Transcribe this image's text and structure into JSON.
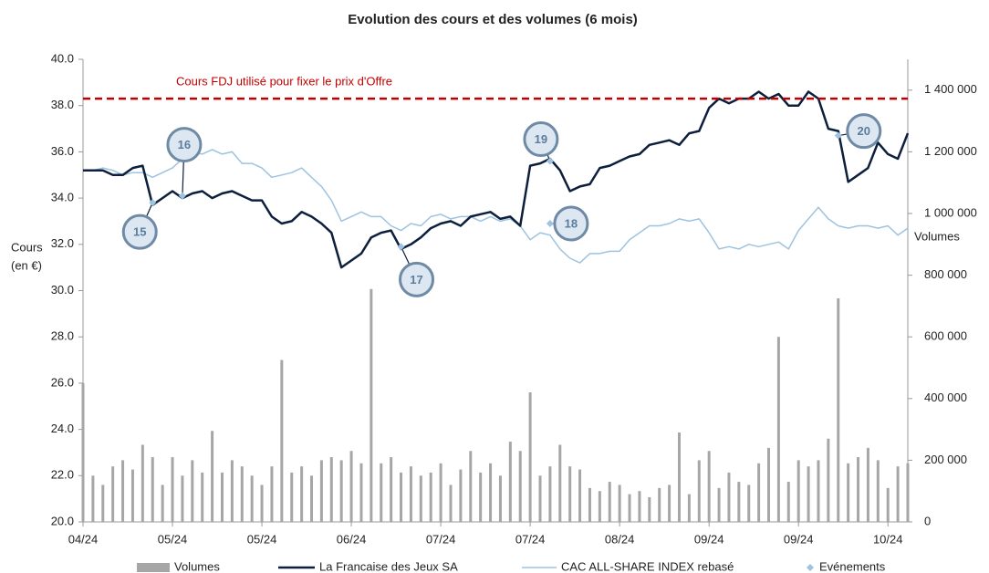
{
  "chart_data": {
    "type": "combo",
    "title": "Evolution des cours et des volumes (6 mois)",
    "ylabel": [
      "Cours",
      "(en €)"
    ],
    "y2label": "Volumes",
    "categories": [
      "04/24",
      null,
      null,
      null,
      null,
      null,
      null,
      null,
      null,
      "05/24",
      null,
      null,
      null,
      null,
      null,
      null,
      null,
      null,
      "05/24",
      null,
      null,
      null,
      null,
      null,
      null,
      null,
      null,
      "06/24",
      null,
      null,
      null,
      null,
      null,
      null,
      null,
      null,
      "07/24",
      null,
      null,
      null,
      null,
      null,
      null,
      null,
      null,
      "07/24",
      null,
      null,
      null,
      null,
      null,
      null,
      null,
      null,
      "08/24",
      null,
      null,
      null,
      null,
      null,
      null,
      null,
      null,
      "09/24",
      null,
      null,
      null,
      null,
      null,
      null,
      null,
      null,
      "09/24",
      null,
      null,
      null,
      null,
      null,
      null,
      null,
      null,
      "10/24",
      null,
      null
    ],
    "ylim": [
      20,
      40
    ],
    "yticks": [
      {
        "value": 20,
        "label": "20.0"
      },
      {
        "value": 22,
        "label": "22.0"
      },
      {
        "value": 24,
        "label": "24.0"
      },
      {
        "value": 26,
        "label": "26.0"
      },
      {
        "value": 28,
        "label": "28.0"
      },
      {
        "value": 30,
        "label": "30.0"
      },
      {
        "value": 32,
        "label": "32.0"
      },
      {
        "value": 34,
        "label": "34.0"
      },
      {
        "value": 36,
        "label": "36.0"
      },
      {
        "value": 38,
        "label": "38.0"
      },
      {
        "value": 40,
        "label": "40.0"
      }
    ],
    "y2lim": [
      0,
      1500000
    ],
    "y2ticks": [
      0,
      {
        "value": 200000,
        "label": "200 000"
      },
      {
        "value": 400000,
        "label": "400 000"
      },
      {
        "value": 600000,
        "label": "600 000"
      },
      {
        "value": 800000,
        "label": "800 000"
      },
      {
        "value": 1000000,
        "label": "1 000 000"
      },
      {
        "value": 1200000,
        "label": "1 200 000"
      },
      {
        "value": 1400000,
        "label": "1 400 000"
      }
    ],
    "grid": false,
    "legend": "bottom",
    "series": [
      {
        "name": "Volumes",
        "type": "bar",
        "axis": "y2",
        "color": "#a6a6a6",
        "values": [
          450000,
          150000,
          120000,
          180000,
          200000,
          170000,
          250000,
          210000,
          120000,
          210000,
          150000,
          200000,
          160000,
          295000,
          160000,
          200000,
          180000,
          150000,
          120000,
          180000,
          525000,
          160000,
          180000,
          150000,
          200000,
          210000,
          200000,
          230000,
          190000,
          755000,
          190000,
          210000,
          160000,
          180000,
          150000,
          160000,
          190000,
          120000,
          170000,
          230000,
          160000,
          190000,
          150000,
          260000,
          230000,
          420000,
          150000,
          180000,
          250000,
          180000,
          170000,
          110000,
          100000,
          130000,
          120000,
          90000,
          100000,
          80000,
          110000,
          120000,
          290000,
          90000,
          200000,
          230000,
          110000,
          160000,
          130000,
          120000,
          190000,
          240000,
          600000,
          130000,
          200000,
          180000,
          200000,
          270000,
          725000,
          190000,
          210000,
          240000,
          200000,
          110000,
          180000,
          190000
        ]
      },
      {
        "name": "La Francaise des Jeux SA",
        "type": "line",
        "color": "#0d1f3c",
        "values": [
          35.2,
          35.2,
          35.2,
          35.0,
          35.0,
          35.3,
          35.4,
          33.7,
          34.0,
          34.3,
          34.0,
          34.2,
          34.3,
          34.0,
          34.2,
          34.3,
          34.1,
          33.9,
          33.9,
          33.2,
          32.9,
          33.0,
          33.4,
          33.2,
          32.9,
          32.5,
          31.0,
          31.3,
          31.6,
          32.3,
          32.5,
          32.6,
          31.8,
          32.0,
          32.3,
          32.7,
          32.9,
          33.0,
          32.8,
          33.2,
          33.3,
          33.4,
          33.1,
          33.2,
          32.8,
          35.4,
          35.5,
          35.7,
          35.2,
          34.3,
          34.5,
          34.6,
          35.3,
          35.4,
          35.6,
          35.8,
          35.9,
          36.3,
          36.4,
          36.5,
          36.3,
          36.8,
          36.9,
          37.9,
          38.3,
          38.1,
          38.3,
          38.3,
          38.6,
          38.3,
          38.5,
          38.0,
          38.0,
          38.6,
          38.3,
          37.0,
          36.9,
          34.7,
          35.0,
          35.3,
          36.4,
          35.9,
          35.7,
          36.8
        ]
      },
      {
        "name": "CAC ALL-SHARE INDEX rebasé",
        "type": "line",
        "color": "#9dc3e0",
        "values": [
          35.2,
          35.2,
          35.3,
          35.2,
          35.0,
          35.1,
          35.1,
          34.9,
          35.1,
          35.3,
          35.7,
          36.0,
          35.9,
          36.1,
          35.9,
          36.0,
          35.5,
          35.5,
          35.3,
          34.9,
          35.0,
          35.1,
          35.3,
          34.9,
          34.5,
          33.9,
          33.0,
          33.2,
          33.4,
          33.2,
          33.2,
          32.8,
          32.6,
          32.9,
          32.8,
          33.2,
          33.3,
          33.1,
          33.2,
          33.2,
          33.0,
          33.2,
          33.0,
          33.1,
          32.8,
          32.2,
          32.5,
          32.4,
          31.8,
          31.4,
          31.2,
          31.6,
          31.6,
          31.7,
          31.7,
          32.2,
          32.5,
          32.8,
          32.8,
          32.9,
          33.1,
          33.0,
          33.1,
          32.5,
          31.8,
          31.9,
          31.8,
          32.0,
          31.9,
          32.0,
          32.1,
          31.8,
          32.6,
          33.1,
          33.6,
          33.1,
          32.8,
          32.7,
          32.8,
          32.8,
          32.7,
          32.8,
          32.4,
          32.7
        ]
      }
    ],
    "reference_line": {
      "value": 38.3,
      "label": "Cours FDJ utilisé pour fixer le prix d'Offre",
      "color": "#c00000"
    },
    "events": {
      "name": "Evénements",
      "color": "#9dc3e0",
      "points": [
        {
          "label": "15",
          "index": 7,
          "value": 33.8
        },
        {
          "label": "16",
          "index": 10,
          "value": 34.1
        },
        {
          "label": "17",
          "index": 32,
          "value": 31.9
        },
        {
          "label": "18",
          "index": 47,
          "value": 32.9
        },
        {
          "label": "19",
          "index": 47,
          "value": 35.6
        },
        {
          "label": "20",
          "index": 76,
          "value": 36.7
        }
      ]
    }
  }
}
